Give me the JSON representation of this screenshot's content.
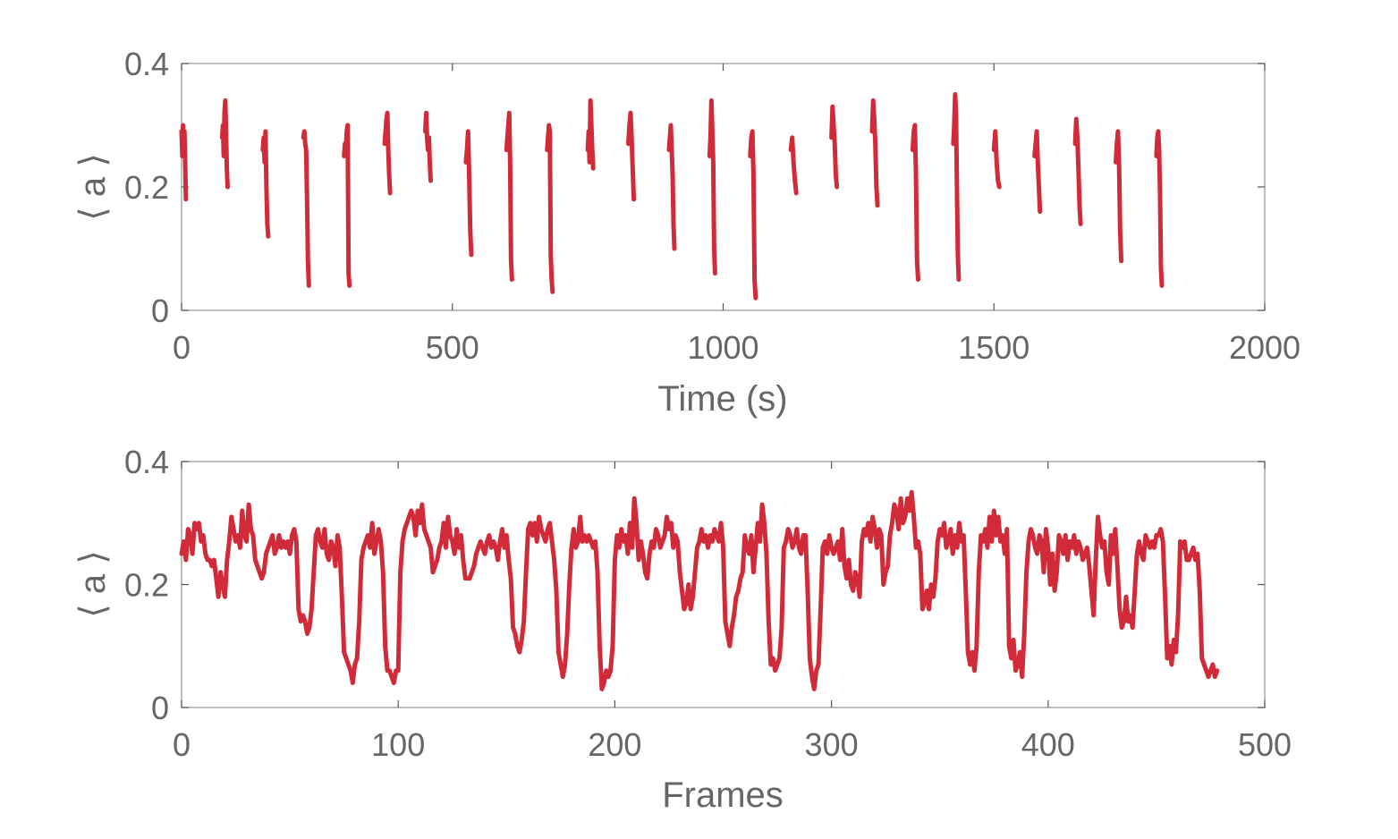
{
  "colors": {
    "series": "#d12a38",
    "text": "#666666",
    "frame": "#9a9a9a"
  },
  "chart_data": [
    {
      "type": "line",
      "title": "",
      "xlabel": "Time (s)",
      "ylabel": "⟨ a ⟩",
      "xlim": [
        0,
        2000
      ],
      "ylim": [
        0,
        0.4
      ],
      "xticks": [
        "0",
        "500",
        "1000",
        "1500",
        "2000"
      ],
      "yticks": [
        "0",
        "0.2",
        "0.4"
      ],
      "grid": false,
      "legend": "none",
      "segments": [
        {
          "t0": 0,
          "t1": 8,
          "vals": [
            0.29,
            0.25,
            0.3,
            0.26,
            0.29,
            0.24,
            0.18
          ]
        },
        {
          "t0": 75,
          "t1": 85,
          "vals": [
            0.28,
            0.3,
            0.25,
            0.32,
            0.34,
            0.29,
            0.23,
            0.2
          ]
        },
        {
          "t0": 150,
          "t1": 160,
          "vals": [
            0.26,
            0.28,
            0.24,
            0.29,
            0.2,
            0.14,
            0.12
          ]
        },
        {
          "t0": 225,
          "t1": 235,
          "vals": [
            0.28,
            0.29,
            0.27,
            0.26,
            0.18,
            0.08,
            0.04
          ]
        },
        {
          "t0": 300,
          "t1": 310,
          "vals": [
            0.25,
            0.27,
            0.26,
            0.29,
            0.3,
            0.06,
            0.04
          ]
        },
        {
          "t0": 375,
          "t1": 385,
          "vals": [
            0.27,
            0.29,
            0.31,
            0.32,
            0.26,
            0.22,
            0.19
          ]
        },
        {
          "t0": 450,
          "t1": 460,
          "vals": [
            0.29,
            0.32,
            0.28,
            0.26,
            0.28,
            0.24,
            0.21
          ]
        },
        {
          "t0": 525,
          "t1": 535,
          "vals": [
            0.24,
            0.26,
            0.29,
            0.22,
            0.13,
            0.09
          ]
        },
        {
          "t0": 600,
          "t1": 610,
          "vals": [
            0.26,
            0.28,
            0.3,
            0.32,
            0.24,
            0.08,
            0.05
          ]
        },
        {
          "t0": 675,
          "t1": 685,
          "vals": [
            0.26,
            0.28,
            0.3,
            0.29,
            0.09,
            0.05,
            0.03
          ]
        },
        {
          "t0": 750,
          "t1": 760,
          "vals": [
            0.26,
            0.29,
            0.24,
            0.34,
            0.3,
            0.26,
            0.23
          ]
        },
        {
          "t0": 825,
          "t1": 835,
          "vals": [
            0.27,
            0.3,
            0.32,
            0.28,
            0.23,
            0.18
          ]
        },
        {
          "t0": 900,
          "t1": 910,
          "vals": [
            0.26,
            0.28,
            0.3,
            0.26,
            0.22,
            0.14,
            0.1
          ]
        },
        {
          "t0": 975,
          "t1": 985,
          "vals": [
            0.25,
            0.28,
            0.34,
            0.29,
            0.24,
            0.1,
            0.06
          ]
        },
        {
          "t0": 1050,
          "t1": 1060,
          "vals": [
            0.25,
            0.28,
            0.29,
            0.22,
            0.05,
            0.02
          ]
        },
        {
          "t0": 1125,
          "t1": 1135,
          "vals": [
            0.26,
            0.28,
            0.24,
            0.21,
            0.19
          ]
        },
        {
          "t0": 1200,
          "t1": 1210,
          "vals": [
            0.28,
            0.33,
            0.3,
            0.27,
            0.22,
            0.2
          ]
        },
        {
          "t0": 1275,
          "t1": 1285,
          "vals": [
            0.29,
            0.34,
            0.31,
            0.27,
            0.2,
            0.17
          ]
        },
        {
          "t0": 1350,
          "t1": 1360,
          "vals": [
            0.26,
            0.29,
            0.3,
            0.22,
            0.08,
            0.05
          ]
        },
        {
          "t0": 1425,
          "t1": 1435,
          "vals": [
            0.27,
            0.3,
            0.35,
            0.32,
            0.2,
            0.09,
            0.05
          ]
        },
        {
          "t0": 1500,
          "t1": 1510,
          "vals": [
            0.26,
            0.29,
            0.24,
            0.21,
            0.2
          ]
        },
        {
          "t0": 1575,
          "t1": 1585,
          "vals": [
            0.25,
            0.27,
            0.29,
            0.24,
            0.2,
            0.16
          ]
        },
        {
          "t0": 1650,
          "t1": 1660,
          "vals": [
            0.27,
            0.31,
            0.28,
            0.23,
            0.17,
            0.14
          ]
        },
        {
          "t0": 1725,
          "t1": 1735,
          "vals": [
            0.24,
            0.27,
            0.29,
            0.24,
            0.13,
            0.08
          ]
        },
        {
          "t0": 1800,
          "t1": 1810,
          "vals": [
            0.25,
            0.28,
            0.29,
            0.26,
            0.19,
            0.07,
            0.04
          ]
        }
      ]
    },
    {
      "type": "line",
      "title": "",
      "xlabel": "Frames",
      "ylabel": "⟨ a ⟩",
      "xlim": [
        0,
        500
      ],
      "ylim": [
        0,
        0.4
      ],
      "xticks": [
        "0",
        "100",
        "200",
        "300",
        "400",
        "500"
      ],
      "yticks": [
        "0",
        "0.2",
        "0.4"
      ],
      "grid": false,
      "legend": "none",
      "x_step": 1,
      "y": [
        0.25,
        0.27,
        0.24,
        0.29,
        0.28,
        0.25,
        0.3,
        0.29,
        0.3,
        0.27,
        0.28,
        0.25,
        0.24,
        0.24,
        0.23,
        0.24,
        0.21,
        0.18,
        0.22,
        0.2,
        0.18,
        0.24,
        0.27,
        0.31,
        0.29,
        0.27,
        0.28,
        0.26,
        0.32,
        0.28,
        0.27,
        0.33,
        0.29,
        0.28,
        0.24,
        0.23,
        0.22,
        0.21,
        0.22,
        0.25,
        0.26,
        0.27,
        0.28,
        0.25,
        0.26,
        0.28,
        0.26,
        0.27,
        0.26,
        0.27,
        0.25,
        0.28,
        0.29,
        0.27,
        0.16,
        0.14,
        0.15,
        0.14,
        0.12,
        0.13,
        0.16,
        0.22,
        0.28,
        0.29,
        0.27,
        0.26,
        0.29,
        0.25,
        0.24,
        0.27,
        0.26,
        0.23,
        0.28,
        0.26,
        0.18,
        0.09,
        0.08,
        0.07,
        0.06,
        0.04,
        0.07,
        0.08,
        0.14,
        0.24,
        0.26,
        0.27,
        0.28,
        0.26,
        0.3,
        0.25,
        0.27,
        0.29,
        0.27,
        0.22,
        0.1,
        0.06,
        0.06,
        0.05,
        0.04,
        0.06,
        0.06,
        0.22,
        0.27,
        0.29,
        0.3,
        0.31,
        0.32,
        0.31,
        0.28,
        0.32,
        0.3,
        0.33,
        0.29,
        0.28,
        0.27,
        0.26,
        0.22,
        0.23,
        0.24,
        0.26,
        0.27,
        0.3,
        0.26,
        0.31,
        0.28,
        0.27,
        0.25,
        0.29,
        0.26,
        0.28,
        0.24,
        0.21,
        0.21,
        0.21,
        0.22,
        0.23,
        0.25,
        0.26,
        0.27,
        0.26,
        0.25,
        0.27,
        0.28,
        0.26,
        0.27,
        0.26,
        0.24,
        0.27,
        0.29,
        0.26,
        0.28,
        0.24,
        0.21,
        0.13,
        0.12,
        0.1,
        0.09,
        0.11,
        0.14,
        0.22,
        0.29,
        0.3,
        0.28,
        0.3,
        0.27,
        0.31,
        0.29,
        0.28,
        0.27,
        0.29,
        0.3,
        0.27,
        0.24,
        0.19,
        0.09,
        0.07,
        0.05,
        0.07,
        0.12,
        0.2,
        0.26,
        0.29,
        0.26,
        0.27,
        0.31,
        0.27,
        0.28,
        0.27,
        0.28,
        0.27,
        0.26,
        0.27,
        0.22,
        0.1,
        0.03,
        0.04,
        0.06,
        0.05,
        0.06,
        0.1,
        0.24,
        0.28,
        0.26,
        0.29,
        0.27,
        0.28,
        0.25,
        0.3,
        0.26,
        0.34,
        0.3,
        0.24,
        0.27,
        0.25,
        0.22,
        0.21,
        0.25,
        0.27,
        0.26,
        0.29,
        0.28,
        0.26,
        0.27,
        0.28,
        0.31,
        0.29,
        0.3,
        0.26,
        0.28,
        0.27,
        0.22,
        0.19,
        0.16,
        0.17,
        0.2,
        0.16,
        0.18,
        0.22,
        0.26,
        0.27,
        0.29,
        0.27,
        0.28,
        0.26,
        0.28,
        0.27,
        0.29,
        0.28,
        0.27,
        0.3,
        0.26,
        0.14,
        0.12,
        0.1,
        0.13,
        0.15,
        0.18,
        0.19,
        0.21,
        0.22,
        0.28,
        0.26,
        0.25,
        0.28,
        0.22,
        0.26,
        0.3,
        0.27,
        0.33,
        0.3,
        0.25,
        0.14,
        0.07,
        0.08,
        0.06,
        0.07,
        0.08,
        0.13,
        0.26,
        0.27,
        0.29,
        0.28,
        0.26,
        0.27,
        0.29,
        0.26,
        0.25,
        0.28,
        0.28,
        0.19,
        0.08,
        0.05,
        0.03,
        0.06,
        0.07,
        0.16,
        0.26,
        0.27,
        0.25,
        0.28,
        0.26,
        0.25,
        0.26,
        0.27,
        0.24,
        0.29,
        0.23,
        0.21,
        0.24,
        0.2,
        0.19,
        0.22,
        0.21,
        0.18,
        0.27,
        0.29,
        0.28,
        0.3,
        0.27,
        0.31,
        0.29,
        0.26,
        0.29,
        0.28,
        0.2,
        0.22,
        0.23,
        0.28,
        0.3,
        0.33,
        0.32,
        0.29,
        0.34,
        0.3,
        0.31,
        0.34,
        0.32,
        0.35,
        0.31,
        0.26,
        0.27,
        0.25,
        0.16,
        0.17,
        0.19,
        0.16,
        0.2,
        0.18,
        0.21,
        0.27,
        0.29,
        0.28,
        0.3,
        0.26,
        0.27,
        0.29,
        0.25,
        0.28,
        0.26,
        0.3,
        0.27,
        0.28,
        0.19,
        0.09,
        0.07,
        0.09,
        0.06,
        0.1,
        0.22,
        0.28,
        0.27,
        0.29,
        0.26,
        0.31,
        0.27,
        0.32,
        0.28,
        0.31,
        0.27,
        0.28,
        0.25,
        0.29,
        0.1,
        0.08,
        0.11,
        0.06,
        0.07,
        0.09,
        0.05,
        0.12,
        0.22,
        0.27,
        0.29,
        0.28,
        0.26,
        0.25,
        0.28,
        0.27,
        0.22,
        0.29,
        0.26,
        0.2,
        0.25,
        0.19,
        0.22,
        0.28,
        0.27,
        0.25,
        0.28,
        0.24,
        0.27,
        0.26,
        0.28,
        0.25,
        0.27,
        0.26,
        0.24,
        0.25,
        0.26,
        0.23,
        0.19,
        0.15,
        0.24,
        0.31,
        0.28,
        0.26,
        0.27,
        0.22,
        0.2,
        0.28,
        0.25,
        0.29,
        0.23,
        0.16,
        0.13,
        0.14,
        0.18,
        0.14,
        0.15,
        0.13,
        0.19,
        0.25,
        0.27,
        0.25,
        0.24,
        0.28,
        0.27,
        0.26,
        0.27,
        0.26,
        0.28,
        0.28,
        0.29,
        0.27,
        0.18,
        0.08,
        0.1,
        0.07,
        0.11,
        0.09,
        0.15,
        0.27,
        0.26,
        0.27,
        0.24,
        0.24,
        0.25,
        0.26,
        0.24,
        0.25,
        0.19,
        0.08,
        0.07,
        0.06,
        0.05,
        0.06,
        0.07,
        0.05,
        0.06
      ]
    }
  ]
}
